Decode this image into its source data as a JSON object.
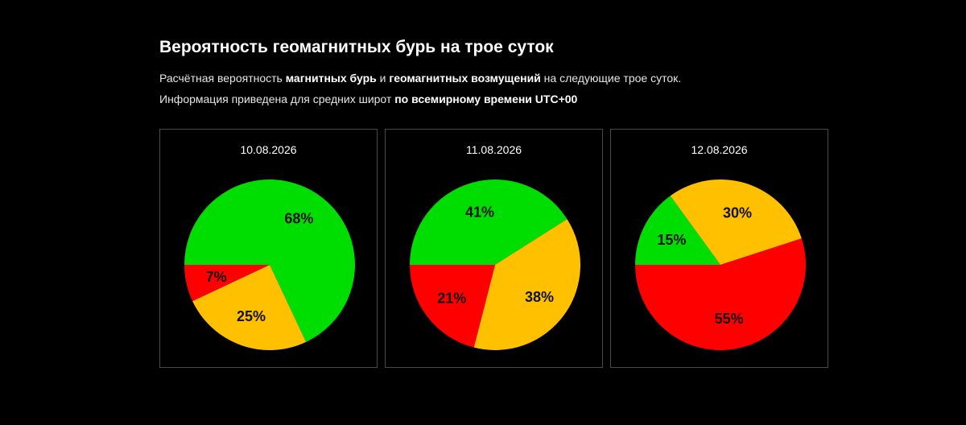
{
  "header": {
    "title": "Вероятность геомагнитных бурь на трое суток",
    "line1": [
      {
        "text": "Расчётная вероятность ",
        "bold": false
      },
      {
        "text": "магнитных бурь",
        "bold": true
      },
      {
        "text": " и ",
        "bold": false
      },
      {
        "text": "геомагнитных возмущений",
        "bold": true
      },
      {
        "text": " на следующие трое суток.",
        "bold": false
      }
    ],
    "line2": [
      {
        "text": "Информация приведена для средних широт ",
        "bold": false
      },
      {
        "text": "по всемирному времени UTC+00",
        "bold": true
      }
    ]
  },
  "colors": {
    "green": "#00dd00",
    "yellow": "#ffc000",
    "red": "#ff0000",
    "background": "#000000",
    "panel_border": "#4a4a4a"
  },
  "chart_data": [
    {
      "type": "pie",
      "title": "10.08.2026",
      "slices": [
        {
          "label": "68%",
          "value": 68,
          "color": "#00dd00"
        },
        {
          "label": "25%",
          "value": 25,
          "color": "#ffc000"
        },
        {
          "label": "7%",
          "value": 7,
          "color": "#ff0000"
        }
      ]
    },
    {
      "type": "pie",
      "title": "11.08.2026",
      "slices": [
        {
          "label": "41%",
          "value": 41,
          "color": "#00dd00"
        },
        {
          "label": "38%",
          "value": 38,
          "color": "#ffc000"
        },
        {
          "label": "21%",
          "value": 21,
          "color": "#ff0000"
        }
      ]
    },
    {
      "type": "pie",
      "title": "12.08.2026",
      "slices": [
        {
          "label": "15%",
          "value": 15,
          "color": "#00dd00"
        },
        {
          "label": "30%",
          "value": 30,
          "color": "#ffc000"
        },
        {
          "label": "55%",
          "value": 55,
          "color": "#ff0000"
        }
      ]
    }
  ]
}
